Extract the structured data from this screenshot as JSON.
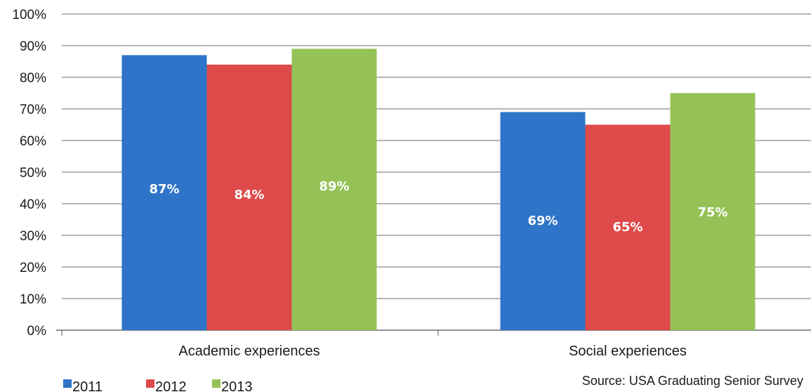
{
  "chart_data": {
    "type": "bar",
    "categories": [
      "Academic experiences",
      "Social experiences"
    ],
    "series": [
      {
        "name": "2011",
        "values": [
          87,
          69
        ],
        "labels": [
          "87%",
          "69%"
        ],
        "color": "#2e74c8"
      },
      {
        "name": "2012",
        "values": [
          84,
          65
        ],
        "labels": [
          "84%",
          "65%"
        ],
        "color": "#de4a4a"
      },
      {
        "name": "2013",
        "values": [
          89,
          75
        ],
        "labels": [
          "89%",
          "75%"
        ],
        "color": "#95c257"
      }
    ],
    "ylim": [
      0,
      100
    ],
    "y_ticks": [
      0,
      10,
      20,
      30,
      40,
      50,
      60,
      70,
      80,
      90,
      100
    ],
    "y_tick_labels": [
      "0%",
      "10%",
      "20%",
      "30%",
      "40%",
      "50%",
      "60%",
      "70%",
      "80%",
      "90%",
      "100%"
    ],
    "grid": true,
    "legend_position": "bottom-left",
    "source": "Source:  USA Graduating Senior Survey",
    "title": "",
    "xlabel": "",
    "ylabel": ""
  }
}
